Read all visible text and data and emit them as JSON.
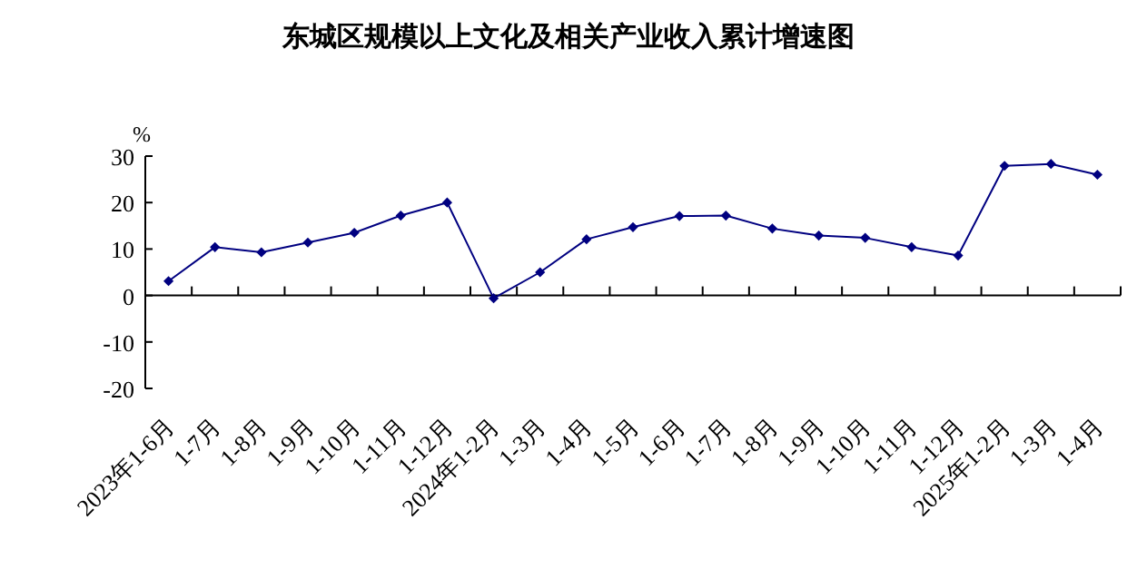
{
  "chart_data": {
    "type": "line",
    "title": "东城区规模以上文化及相关产业收入累计增速图",
    "ylabel": "%",
    "categories": [
      "2023年1-6月",
      "1-7月",
      "1-8月",
      "1-9月",
      "1-10月",
      "1-11月",
      "1-12月",
      "2024年1-2月",
      "1-3月",
      "1-4月",
      "1-5月",
      "1-6月",
      "1-7月",
      "1-8月",
      "1-9月",
      "1-10月",
      "1-11月",
      "1-12月",
      "2025年1-2月",
      "1-3月",
      "1-4月"
    ],
    "series": [
      {
        "color": "#000080",
        "values": [
          3.1,
          10.4,
          9.3,
          11.4,
          13.5,
          17.2,
          20.0,
          -0.6,
          5.0,
          12.1,
          14.7,
          17.1,
          17.2,
          14.4,
          12.9,
          12.4,
          10.4,
          8.6,
          27.9,
          28.3,
          26.0
        ]
      }
    ],
    "ylim": [
      -20,
      30
    ],
    "yticks": [
      -20,
      -10,
      0,
      10,
      20,
      30
    ],
    "marker": "diamond",
    "line_style": "solid"
  }
}
